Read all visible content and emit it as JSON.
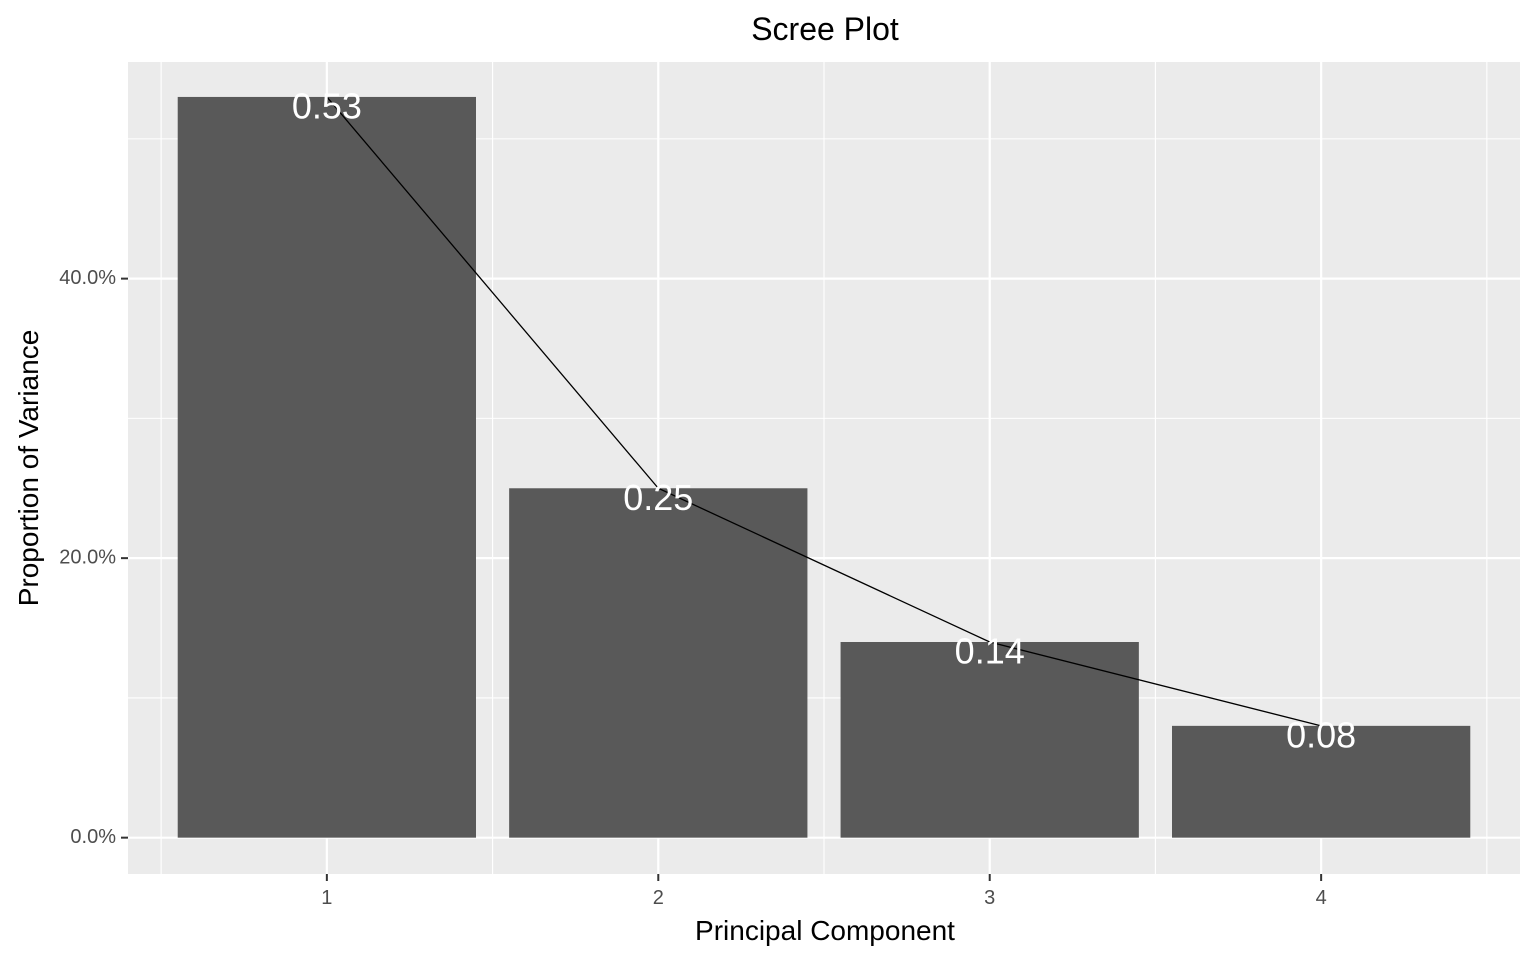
{
  "chart_data": {
    "type": "bar",
    "title": "Scree Plot",
    "xlabel": "Principal Component",
    "ylabel": "Proportion of Variance",
    "categories": [
      "1",
      "2",
      "3",
      "4"
    ],
    "values": [
      0.53,
      0.25,
      0.14,
      0.08
    ],
    "data_labels": [
      "0.53",
      "0.25",
      "0.14",
      "0.08"
    ],
    "overlay_line": true,
    "ylim": [
      -0.026,
      0.555
    ],
    "y_ticks": [
      {
        "value": 0.0,
        "label": "0.0%"
      },
      {
        "value": 0.2,
        "label": "20.0%"
      },
      {
        "value": 0.4,
        "label": "40.0%"
      }
    ],
    "y_minor_ticks": [
      0.1,
      0.3,
      0.5
    ],
    "grid": true,
    "legend": "none",
    "colors": {
      "panel_background": "#ebebeb",
      "grid_line": "#ffffff",
      "bar_fill": "#595959",
      "line": "#000000",
      "data_label": "#ffffff",
      "tick_label": "#4d4d4d",
      "tick_mark": "#333333"
    }
  }
}
